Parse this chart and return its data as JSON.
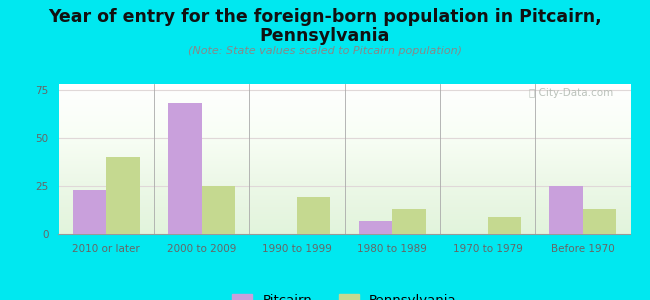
{
  "title_line1": "Year of entry for the foreign-born population in Pitcairn,",
  "title_line2": "Pennsylvania",
  "subtitle": "(Note: State values scaled to Pitcairn population)",
  "categories": [
    "2010 or later",
    "2000 to 2009",
    "1990 to 1999",
    "1980 to 1989",
    "1970 to 1979",
    "Before 1970"
  ],
  "pitcairn_values": [
    23,
    68,
    0,
    7,
    0,
    25
  ],
  "pennsylvania_values": [
    40,
    25,
    19,
    13,
    9,
    13
  ],
  "pitcairn_color": "#c9a0dc",
  "pennsylvania_color": "#c5d990",
  "background_color": "#00e8f0",
  "ylim": [
    0,
    78
  ],
  "yticks": [
    0,
    25,
    50,
    75
  ],
  "bar_width": 0.35,
  "watermark": "ⓘ City-Data.com",
  "title_fontsize": 12.5,
  "subtitle_fontsize": 8,
  "tick_fontsize": 7.5,
  "legend_fontsize": 9.5
}
